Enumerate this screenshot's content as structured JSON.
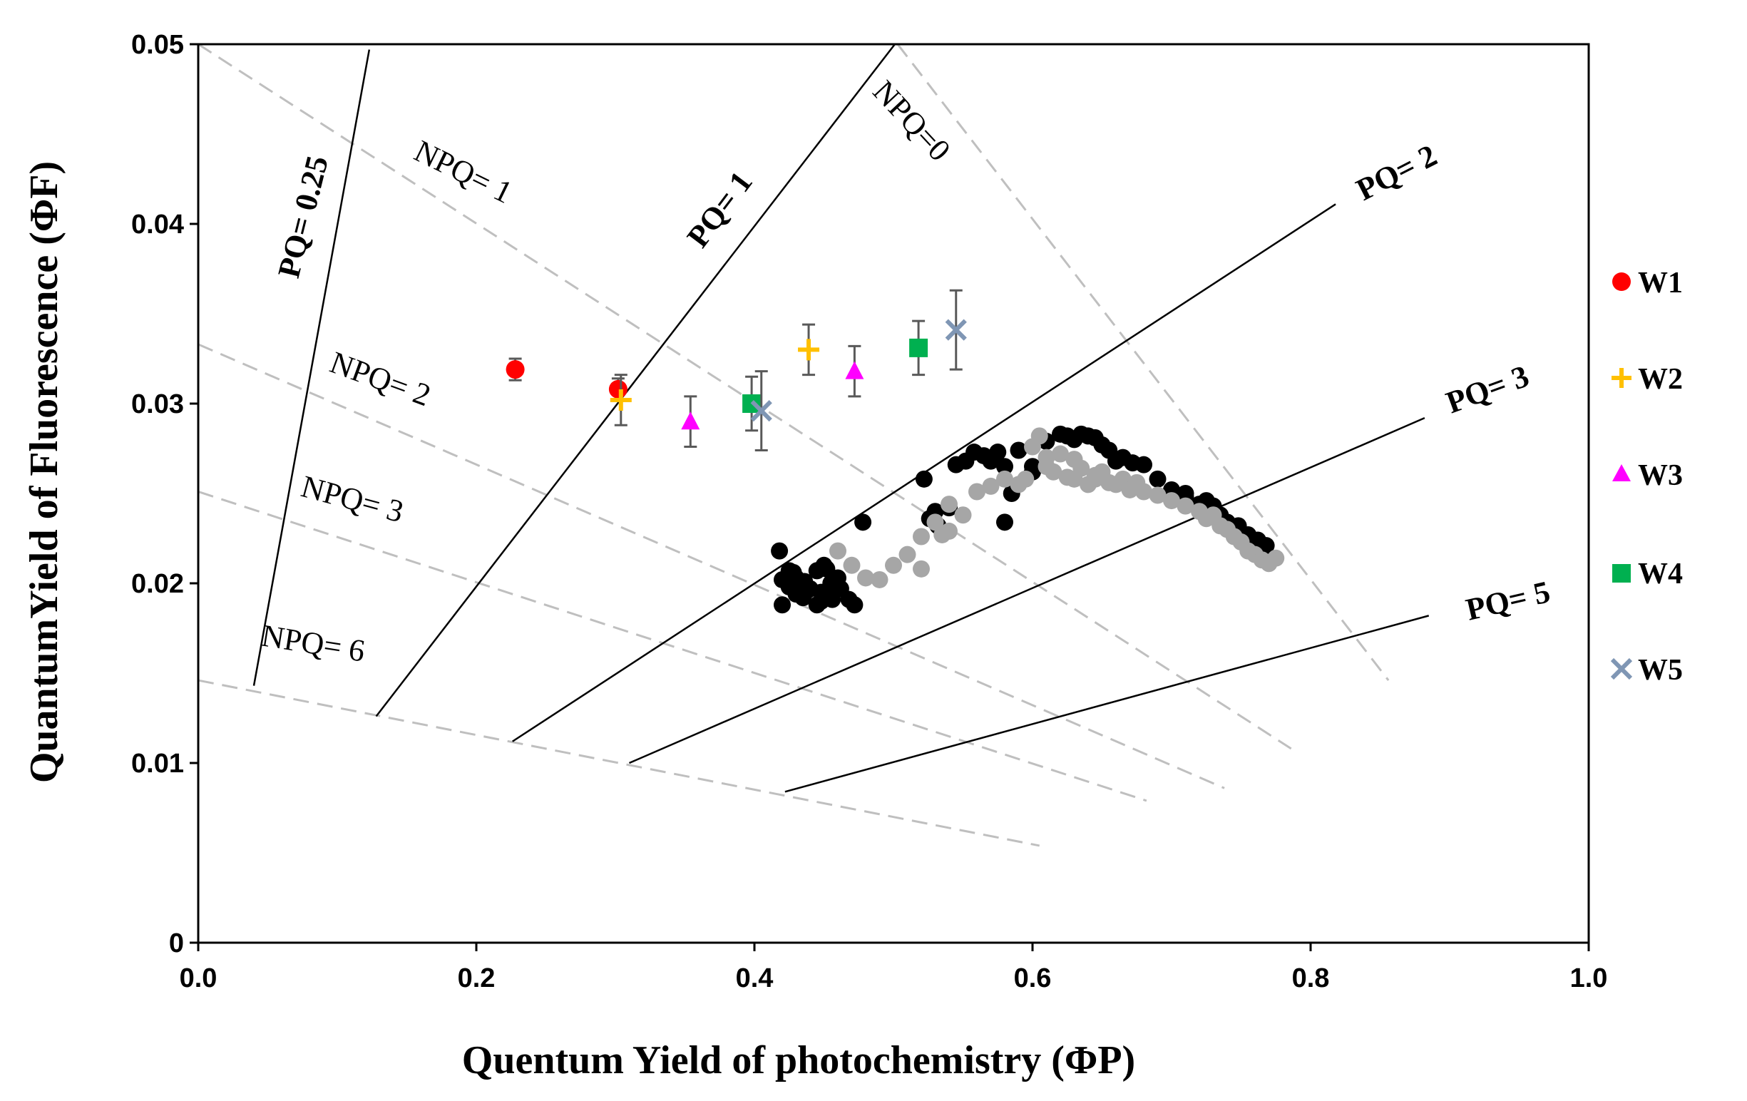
{
  "chart_data": {
    "type": "scatter",
    "title": "",
    "xlabel": "Quentum Yield of photochemistry (ΦP)",
    "ylabel": "QuantumYield of Fluorescence (ΦF)",
    "xlim": [
      0.0,
      1.0
    ],
    "ylim": [
      0,
      0.05
    ],
    "xticks": [
      "0.0",
      "0.2",
      "0.4",
      "0.6",
      "0.8",
      "1.0"
    ],
    "yticks": [
      "0",
      "0.01",
      "0.02",
      "0.03",
      "0.04",
      "0.05"
    ],
    "xtick_values": [
      0.0,
      0.2,
      0.4,
      0.6,
      0.8,
      1.0
    ],
    "ytick_values": [
      0,
      0.01,
      0.02,
      0.03,
      0.04,
      0.05
    ],
    "legend_position": "right",
    "colors": {
      "W1": "#ff0000",
      "W2": "#ffc000",
      "W3": "#ff00ff",
      "W4": "#00b050",
      "W5": "#7f96b4",
      "black": "#000000",
      "gray": "#a6a6a6",
      "dashed": "#bfbfbf"
    },
    "series": [
      {
        "name": "W1",
        "marker": "circle",
        "x": [
          0.228,
          0.302
        ],
        "y": [
          0.0319,
          0.0308
        ],
        "err": [
          0.0006,
          0.0006
        ]
      },
      {
        "name": "W2",
        "marker": "plus",
        "x": [
          0.304,
          0.439
        ],
        "y": [
          0.0302,
          0.033
        ],
        "err": [
          0.0014,
          0.0014
        ]
      },
      {
        "name": "W3",
        "marker": "triangle",
        "x": [
          0.354,
          0.472
        ],
        "y": [
          0.029,
          0.0318
        ],
        "err": [
          0.0014,
          0.0014
        ]
      },
      {
        "name": "W4",
        "marker": "square",
        "x": [
          0.398,
          0.518
        ],
        "y": [
          0.03,
          0.0331
        ],
        "err": [
          0.0015,
          0.0015
        ]
      },
      {
        "name": "W5",
        "marker": "x",
        "x": [
          0.405,
          0.545
        ],
        "y": [
          0.0296,
          0.0341
        ],
        "err": [
          0.0022,
          0.0022
        ]
      }
    ],
    "background_black": {
      "x": [
        0.418,
        0.42,
        0.425,
        0.43,
        0.435,
        0.44,
        0.445,
        0.448,
        0.45,
        0.455,
        0.46,
        0.425,
        0.43,
        0.438,
        0.445,
        0.452,
        0.458,
        0.462,
        0.42,
        0.428,
        0.436,
        0.448,
        0.456,
        0.468,
        0.472,
        0.478,
        0.522,
        0.526,
        0.532,
        0.54,
        0.545,
        0.552,
        0.558,
        0.565,
        0.57,
        0.575,
        0.58,
        0.585,
        0.59,
        0.6,
        0.61,
        0.62,
        0.625,
        0.63,
        0.635,
        0.64,
        0.645,
        0.65,
        0.655,
        0.66,
        0.665,
        0.672,
        0.68,
        0.69,
        0.7,
        0.71,
        0.72,
        0.728,
        0.735,
        0.74,
        0.748,
        0.755,
        0.762,
        0.768,
        0.58,
        0.6,
        0.71,
        0.725,
        0.73,
        0.53
      ],
      "y": [
        0.0218,
        0.0188,
        0.0198,
        0.0203,
        0.0192,
        0.0197,
        0.0207,
        0.019,
        0.021,
        0.02,
        0.0203,
        0.0207,
        0.0194,
        0.0196,
        0.0188,
        0.0208,
        0.02,
        0.0197,
        0.0202,
        0.0206,
        0.0201,
        0.0195,
        0.0191,
        0.0191,
        0.0188,
        0.0234,
        0.0258,
        0.0236,
        0.0232,
        0.0242,
        0.0266,
        0.0268,
        0.0273,
        0.0271,
        0.0268,
        0.0273,
        0.0265,
        0.025,
        0.0274,
        0.0265,
        0.0279,
        0.0283,
        0.0282,
        0.028,
        0.0283,
        0.0282,
        0.0281,
        0.0277,
        0.0274,
        0.0268,
        0.027,
        0.0267,
        0.0266,
        0.0258,
        0.0252,
        0.025,
        0.0244,
        0.0241,
        0.0238,
        0.0234,
        0.0232,
        0.0227,
        0.0224,
        0.0221,
        0.0234,
        0.0262,
        0.0248,
        0.0246,
        0.0243,
        0.024
      ]
    },
    "background_gray": {
      "x": [
        0.46,
        0.47,
        0.48,
        0.49,
        0.5,
        0.51,
        0.52,
        0.53,
        0.535,
        0.54,
        0.55,
        0.56,
        0.57,
        0.58,
        0.59,
        0.6,
        0.605,
        0.61,
        0.615,
        0.62,
        0.625,
        0.63,
        0.635,
        0.64,
        0.645,
        0.65,
        0.655,
        0.66,
        0.665,
        0.67,
        0.675,
        0.68,
        0.69,
        0.7,
        0.71,
        0.72,
        0.725,
        0.73,
        0.735,
        0.74,
        0.745,
        0.75,
        0.755,
        0.76,
        0.765,
        0.77,
        0.775,
        0.52,
        0.54,
        0.61,
        0.63,
        0.645,
        0.595
      ],
      "y": [
        0.0218,
        0.021,
        0.0203,
        0.0202,
        0.021,
        0.0216,
        0.0226,
        0.0234,
        0.0227,
        0.0244,
        0.0238,
        0.0251,
        0.0254,
        0.0258,
        0.0255,
        0.0276,
        0.0282,
        0.027,
        0.0262,
        0.0272,
        0.0259,
        0.0258,
        0.0264,
        0.0255,
        0.0258,
        0.0262,
        0.0256,
        0.0255,
        0.0258,
        0.0252,
        0.0256,
        0.0251,
        0.0249,
        0.0246,
        0.0243,
        0.024,
        0.0236,
        0.0238,
        0.0232,
        0.023,
        0.0226,
        0.0223,
        0.0218,
        0.0216,
        0.0213,
        0.0211,
        0.0214,
        0.0208,
        0.0229,
        0.0265,
        0.0269,
        0.026,
        0.0258
      ]
    },
    "pq_lines": [
      {
        "label": "PQ= 0.25",
        "from": [
          0.04,
          0.0143
        ],
        "to": [
          0.123,
          0.0497
        ]
      },
      {
        "label": "PQ= 1",
        "from": [
          0.128,
          0.0126
        ],
        "to": [
          0.501,
          0.05
        ]
      },
      {
        "label": "PQ= 2",
        "from": [
          0.226,
          0.0112
        ],
        "to": [
          0.818,
          0.0411
        ]
      },
      {
        "label": "PQ= 3",
        "from": [
          0.31,
          0.01
        ],
        "to": [
          0.882,
          0.0292
        ]
      },
      {
        "label": "PQ= 5",
        "from": [
          0.422,
          0.0084
        ],
        "to": [
          0.885,
          0.0182
        ]
      }
    ],
    "npq_lines": [
      {
        "label": "NPQ=0",
        "from": [
          0.503,
          0.05
        ],
        "to": [
          0.856,
          0.0146
        ]
      },
      {
        "label": "NPQ= 1",
        "from": [
          0.0,
          0.05
        ],
        "to": [
          0.786,
          0.0108
        ]
      },
      {
        "label": "NPQ= 2",
        "from": [
          0.0,
          0.0333
        ],
        "to": [
          0.738,
          0.0086
        ]
      },
      {
        "label": "NPQ= 3",
        "from": [
          0.0,
          0.0251
        ],
        "to": [
          0.682,
          0.0079
        ]
      },
      {
        "label": "NPQ= 6",
        "from": [
          0.0,
          0.0146
        ],
        "to": [
          0.605,
          0.0054
        ]
      }
    ],
    "annotations": {
      "pq025": "PQ= 0.25",
      "pq1": "PQ= 1",
      "pq2": "PQ= 2",
      "pq3": "PQ= 3",
      "pq5": "PQ= 5",
      "npq0": "NPQ=0",
      "npq1": "NPQ= 1",
      "npq2": "NPQ= 2",
      "npq3": "NPQ= 3",
      "npq6": "NPQ= 6"
    },
    "legend": [
      "W1",
      "W2",
      "W3",
      "W4",
      "W5"
    ]
  }
}
